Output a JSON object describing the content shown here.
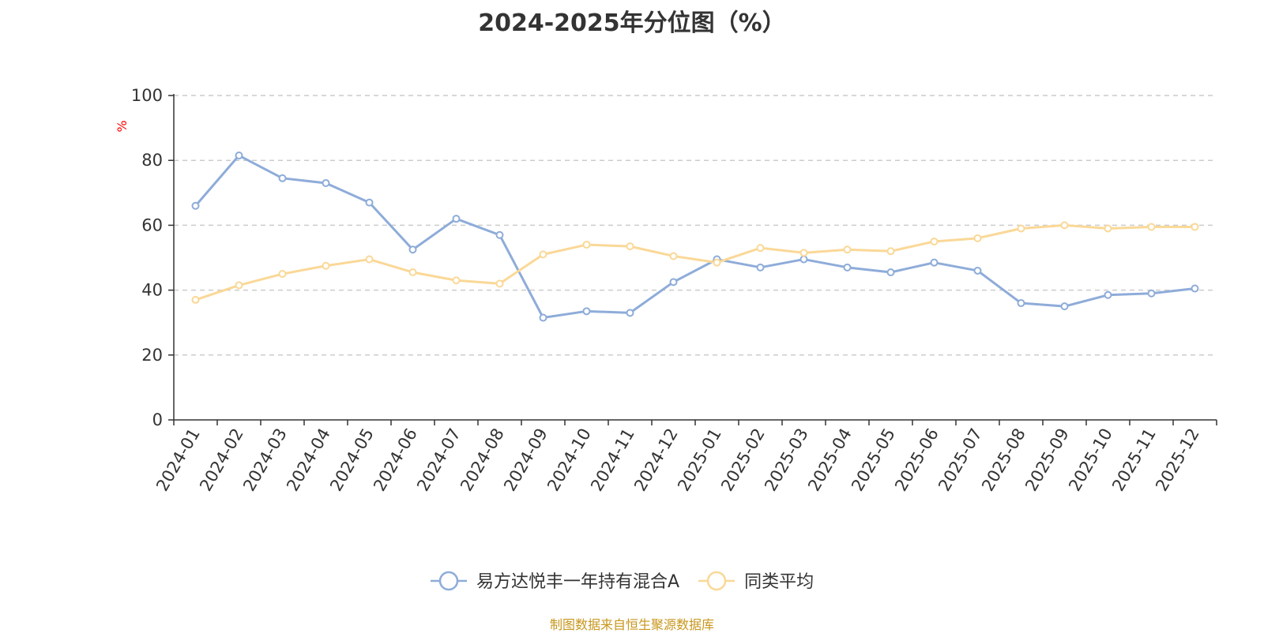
{
  "chart_data": {
    "type": "line",
    "title": "2024-2025年分位图（%）",
    "ylabel": "%",
    "xlabel": "",
    "ylim": [
      0,
      100
    ],
    "yticks": [
      0,
      20,
      40,
      60,
      80,
      100
    ],
    "grid": true,
    "legend_position": "bottom",
    "categories": [
      "2024-01",
      "2024-02",
      "2024-03",
      "2024-04",
      "2024-05",
      "2024-06",
      "2024-07",
      "2024-08",
      "2024-09",
      "2024-10",
      "2024-11",
      "2024-12",
      "2025-01",
      "2025-02",
      "2025-03",
      "2025-04",
      "2025-05",
      "2025-06",
      "2025-07",
      "2025-08",
      "2025-09",
      "2025-10",
      "2025-11",
      "2025-12"
    ],
    "series": [
      {
        "name": "易方达悦丰一年持有混合A",
        "color": "#8eacd9",
        "values": [
          66,
          81.5,
          74.5,
          73,
          67,
          52.5,
          62,
          57,
          31.5,
          33.5,
          33,
          42.5,
          49.5,
          47,
          49.5,
          47,
          45.5,
          48.5,
          46,
          36,
          35,
          38.5,
          39,
          40.5
        ]
      },
      {
        "name": "同类平均",
        "color": "#fad897",
        "values": [
          37,
          41.5,
          45,
          47.5,
          49.5,
          45.5,
          43,
          42,
          51,
          54,
          53.5,
          50.5,
          48.5,
          53,
          51.5,
          52.5,
          52,
          55,
          56,
          59,
          60,
          59,
          59.5,
          59.5
        ]
      }
    ]
  },
  "source_note": "制图数据来自恒生聚源数据库"
}
